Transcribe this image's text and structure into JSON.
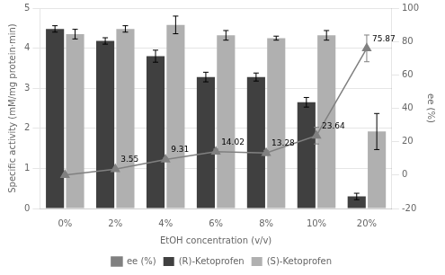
{
  "chart_data": {
    "type": "bar",
    "categories": [
      "0%",
      "2%",
      "4%",
      "6%",
      "8%",
      "10%",
      "20%"
    ],
    "xlabel": "EtOH concentration (v/v)",
    "ylabel": "Specific activity (mM/mg protein·min)",
    "y2label": "ee (%)",
    "ylim": [
      0,
      5
    ],
    "yticks": [
      0,
      1,
      2,
      3,
      4,
      5
    ],
    "y2lim": [
      -20,
      100
    ],
    "y2ticks": [
      -20,
      0,
      20,
      40,
      60,
      80,
      100
    ],
    "grid": true,
    "legend": "bottom",
    "series": [
      {
        "name": "(R)-Ketoprofen",
        "color": "#404040",
        "values": [
          4.48,
          4.18,
          3.8,
          3.28,
          3.28,
          2.65,
          0.3
        ],
        "errors": [
          0.08,
          0.08,
          0.15,
          0.12,
          0.1,
          0.12,
          0.08
        ]
      },
      {
        "name": "(S)-Ketoprofen",
        "color": "#b0b0b0",
        "values": [
          4.35,
          4.48,
          4.58,
          4.32,
          4.25,
          4.32,
          1.92
        ],
        "errors": [
          0.12,
          0.08,
          0.22,
          0.12,
          0.05,
          0.12,
          0.45
        ]
      },
      {
        "name": "ee (%)",
        "type": "line",
        "axis": "y2",
        "color": "#808080",
        "marker": "triangle",
        "values": [
          0.0,
          3.55,
          9.31,
          14.02,
          13.28,
          23.64,
          75.87
        ],
        "errors": [
          0.5,
          0.5,
          0.8,
          1.5,
          1.5,
          5.0,
          8.0
        ],
        "data_labels": true,
        "value_labels": [
          null,
          "3.55",
          "9.31",
          "14.02",
          "13.28",
          "23.64",
          "75.87"
        ]
      }
    ]
  }
}
